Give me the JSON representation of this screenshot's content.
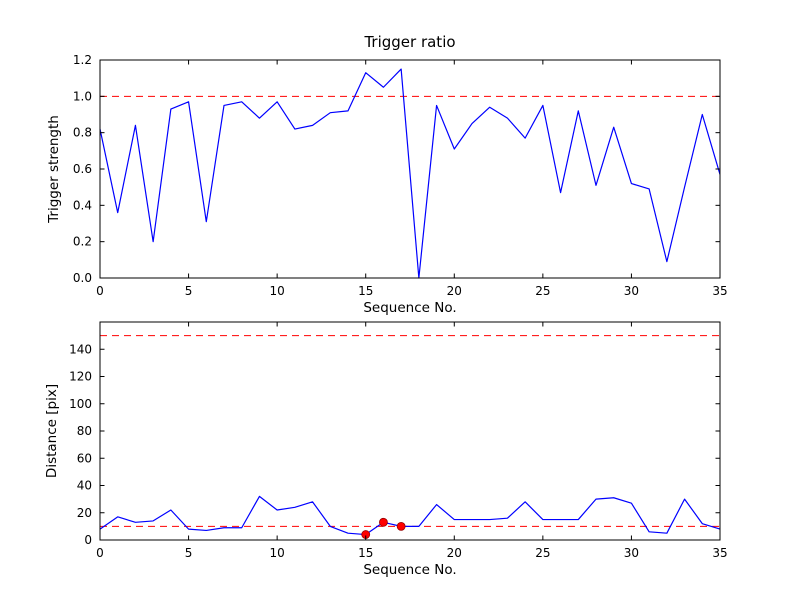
{
  "figure": {
    "background": "#ffffff",
    "line_color": "#0000ff",
    "threshold_color": "#ff0000"
  },
  "chart_data": [
    {
      "type": "line",
      "title": "Trigger ratio",
      "xlabel": "Sequence No.",
      "ylabel": "Trigger strength",
      "xlim": [
        0,
        35
      ],
      "ylim": [
        0.0,
        1.2
      ],
      "xticks": [
        0,
        5,
        10,
        15,
        20,
        25,
        30,
        35
      ],
      "xtick_labels": [
        "0",
        "5",
        "10",
        "15",
        "20",
        "25",
        "30",
        "35"
      ],
      "yticks": [
        0.0,
        0.2,
        0.4,
        0.6,
        0.8,
        1.0,
        1.2
      ],
      "ytick_labels": [
        "0.0",
        "0.2",
        "0.4",
        "0.6",
        "0.8",
        "1.0",
        "1.2"
      ],
      "grid": false,
      "legend": null,
      "hlines": [
        {
          "name": "trigger-threshold-line",
          "y": 1.0,
          "color": "#ff0000",
          "style": "dashed"
        }
      ],
      "x": [
        0,
        1,
        2,
        3,
        4,
        5,
        6,
        7,
        8,
        9,
        10,
        11,
        12,
        13,
        14,
        15,
        16,
        17,
        18,
        19,
        20,
        21,
        22,
        23,
        24,
        25,
        26,
        27,
        28,
        29,
        30,
        31,
        32,
        33,
        34,
        35
      ],
      "series": [
        {
          "name": "trigger-strength-line",
          "color": "#0000ff",
          "style": "solid",
          "values": [
            0.82,
            0.36,
            0.84,
            0.2,
            0.93,
            0.97,
            0.31,
            0.95,
            0.97,
            0.88,
            0.97,
            0.82,
            0.84,
            0.91,
            0.92,
            1.13,
            1.05,
            1.15,
            0.0,
            0.95,
            0.71,
            0.85,
            0.94,
            0.88,
            0.77,
            0.95,
            0.47,
            0.92,
            0.51,
            0.83,
            0.52,
            0.49,
            0.09,
            0.5,
            0.9,
            0.57
          ]
        }
      ]
    },
    {
      "type": "line",
      "title": "",
      "xlabel": "Sequence No.",
      "ylabel": "Distance [pix]",
      "xlim": [
        0,
        35
      ],
      "ylim": [
        0,
        160
      ],
      "xticks": [
        0,
        5,
        10,
        15,
        20,
        25,
        30,
        35
      ],
      "xtick_labels": [
        "0",
        "5",
        "10",
        "15",
        "20",
        "25",
        "30",
        "35"
      ],
      "yticks": [
        0,
        20,
        40,
        60,
        80,
        100,
        120,
        140
      ],
      "ytick_labels": [
        "0",
        "20",
        "40",
        "60",
        "80",
        "100",
        "120",
        "140"
      ],
      "grid": false,
      "legend": null,
      "hlines": [
        {
          "name": "distance-upper-threshold-line",
          "y": 150,
          "color": "#ff0000",
          "style": "dashed"
        },
        {
          "name": "distance-lower-threshold-line",
          "y": 10,
          "color": "#ff0000",
          "style": "dashed"
        }
      ],
      "x": [
        0,
        1,
        2,
        3,
        4,
        5,
        6,
        7,
        8,
        9,
        10,
        11,
        12,
        13,
        14,
        15,
        16,
        17,
        18,
        19,
        20,
        21,
        22,
        23,
        24,
        25,
        26,
        27,
        28,
        29,
        30,
        31,
        32,
        33,
        34,
        35
      ],
      "series": [
        {
          "name": "distance-line",
          "color": "#0000ff",
          "style": "solid",
          "values": [
            8,
            17,
            13,
            14,
            22,
            8,
            7,
            9,
            9,
            32,
            22,
            24,
            28,
            10,
            5,
            4,
            13,
            10,
            10,
            26,
            15,
            15,
            15,
            16,
            28,
            15,
            15,
            15,
            30,
            31,
            27,
            6,
            5,
            30,
            12,
            8
          ]
        },
        {
          "name": "trigger-points",
          "color": "#ff0000",
          "marker": "circle",
          "x": [
            15,
            16,
            17
          ],
          "values": [
            4,
            13,
            10
          ]
        }
      ]
    }
  ]
}
